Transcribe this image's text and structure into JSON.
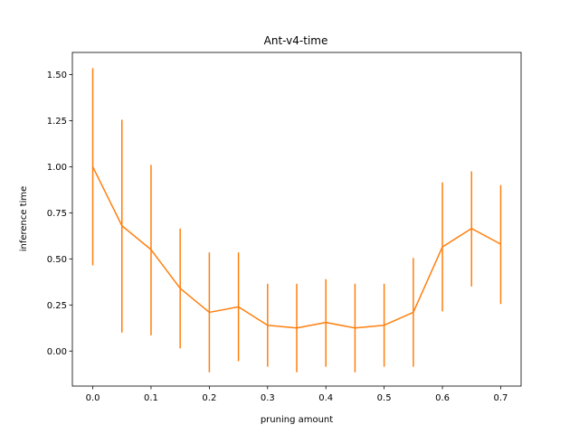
{
  "chart_data": {
    "type": "line",
    "title": "Ant-v4-time",
    "xlabel": "pruning amount",
    "ylabel": "inference time",
    "xlim": [
      -0.035,
      0.735
    ],
    "ylim": [
      -0.19,
      1.62
    ],
    "xticks": [
      0.0,
      0.1,
      0.2,
      0.3,
      0.4,
      0.5,
      0.6,
      0.7
    ],
    "xtick_labels": [
      "0.0",
      "0.1",
      "0.2",
      "0.3",
      "0.4",
      "0.5",
      "0.6",
      "0.7"
    ],
    "yticks": [
      0.0,
      0.25,
      0.5,
      0.75,
      1.0,
      1.25,
      1.5
    ],
    "ytick_labels": [
      "0.00",
      "0.25",
      "0.50",
      "0.75",
      "1.00",
      "1.25",
      "1.50"
    ],
    "grid": false,
    "series": [
      {
        "color": "#ff7f0e",
        "x": [
          0.0,
          0.05,
          0.1,
          0.15,
          0.2,
          0.25,
          0.3,
          0.35,
          0.4,
          0.45,
          0.5,
          0.55,
          0.6,
          0.65,
          0.7
        ],
        "y": [
          1.0,
          0.68,
          0.55,
          0.34,
          0.21,
          0.24,
          0.14,
          0.125,
          0.155,
          0.125,
          0.14,
          0.21,
          0.565,
          0.665,
          0.58
        ],
        "err_low": [
          0.465,
          0.1,
          0.085,
          0.015,
          -0.115,
          -0.055,
          -0.085,
          -0.115,
          -0.085,
          -0.115,
          -0.085,
          -0.085,
          0.215,
          0.35,
          0.255
        ],
        "err_high": [
          1.535,
          1.255,
          1.01,
          0.665,
          0.535,
          0.535,
          0.365,
          0.365,
          0.39,
          0.365,
          0.365,
          0.505,
          0.915,
          0.975,
          0.9
        ]
      }
    ]
  }
}
